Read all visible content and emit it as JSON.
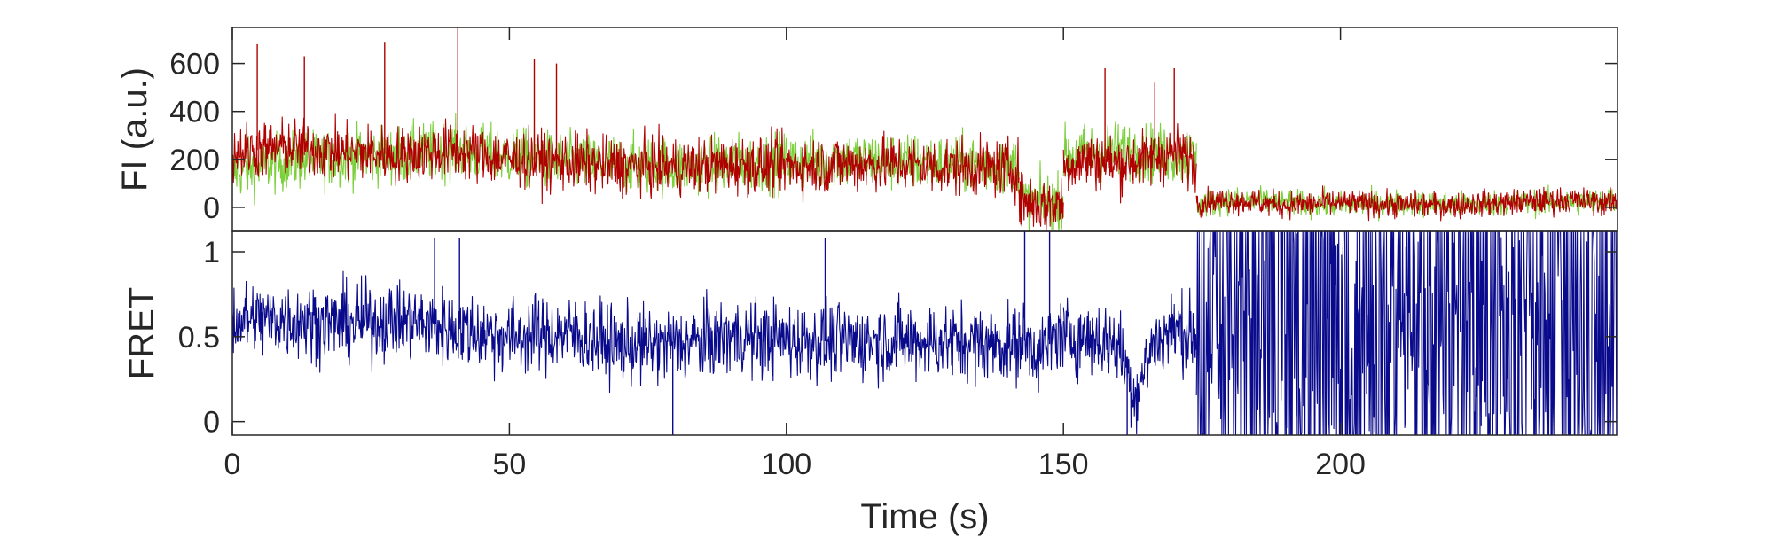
{
  "chart_data": [
    {
      "type": "line",
      "panel": "top",
      "ylabel": "FI (a.u.)",
      "xlim": [
        0,
        250
      ],
      "ylim": [
        -100,
        750
      ],
      "yticks": [
        0,
        200,
        400,
        600
      ],
      "ytick_labels": [
        "0",
        "200",
        "400",
        "600"
      ],
      "colors": {
        "donor": "#7ccf3a",
        "acceptor": "#b00000"
      },
      "series": [
        {
          "color_key": "donor",
          "segments": [
            {
              "x": [
                0,
                10,
                20,
                30,
                40,
                50,
                60,
                70,
                80,
                90,
                100,
                110,
                120,
                130,
                142
              ],
              "y": [
                150,
                190,
                210,
                220,
                240,
                210,
                190,
                180,
                170,
                180,
                190,
                200,
                190,
                180,
                175
              ]
            },
            {
              "x": [
                142,
                146,
                150
              ],
              "y": [
                20,
                20,
                20
              ]
            },
            {
              "x": [
                150,
                155,
                160,
                165,
                170,
                174
              ],
              "y": [
                210,
                230,
                240,
                230,
                220,
                210
              ]
            },
            {
              "x": [
                174,
                180,
                190,
                200,
                210,
                220,
                230,
                240,
                250
              ],
              "y": [
                10,
                30,
                20,
                10,
                20,
                10,
                20,
                20,
                30
              ]
            }
          ]
        },
        {
          "color_key": "acceptor",
          "segments": [
            {
              "x": [
                0,
                10,
                20,
                30,
                40,
                50,
                60,
                70,
                80,
                90,
                100,
                110,
                120,
                130,
                142
              ],
              "y": [
                230,
                250,
                230,
                220,
                240,
                200,
                190,
                170,
                170,
                180,
                175,
                180,
                180,
                170,
                160
              ]
            },
            {
              "x": [
                142,
                146,
                150
              ],
              "y": [
                30,
                10,
                20
              ]
            },
            {
              "x": [
                150,
                155,
                160,
                165,
                170,
                174
              ],
              "y": [
                170,
                200,
                180,
                200,
                230,
                190
              ]
            },
            {
              "x": [
                174,
                180,
                190,
                200,
                210,
                220,
                230,
                240,
                250
              ],
              "y": [
                20,
                30,
                10,
                20,
                10,
                10,
                20,
                30,
                20
              ]
            }
          ],
          "spikes": [
            {
              "x": 4.5,
              "y": 680
            },
            {
              "x": 13,
              "y": 630
            },
            {
              "x": 27.5,
              "y": 690
            },
            {
              "x": 40.7,
              "y": 750
            },
            {
              "x": 54.5,
              "y": 620
            },
            {
              "x": 58.5,
              "y": 600
            },
            {
              "x": 157.5,
              "y": 580
            },
            {
              "x": 166.5,
              "y": 520
            },
            {
              "x": 170,
              "y": 580
            }
          ]
        }
      ]
    },
    {
      "type": "line",
      "panel": "bottom",
      "xlabel": "Time (s)",
      "ylabel": "FRET",
      "xlim": [
        0,
        250
      ],
      "ylim": [
        -0.08,
        1.12
      ],
      "xticks": [
        0,
        50,
        100,
        150,
        200
      ],
      "xtick_labels": [
        "0",
        "50",
        "100",
        "150",
        "200"
      ],
      "yticks": [
        0,
        0.5,
        1
      ],
      "ytick_labels": [
        "0",
        "0.5",
        "1"
      ],
      "colors": {
        "fret": "#0a0a8c"
      },
      "series": [
        {
          "color_key": "fret",
          "segments": [
            {
              "x": [
                0,
                10,
                20,
                30,
                40,
                50,
                60,
                70,
                80,
                90,
                100,
                110,
                120,
                130,
                142
              ],
              "y": [
                0.6,
                0.6,
                0.58,
                0.6,
                0.55,
                0.5,
                0.52,
                0.45,
                0.45,
                0.5,
                0.48,
                0.47,
                0.48,
                0.47,
                0.45
              ]
            },
            {
              "x": [
                142,
                146,
                150
              ],
              "y": [
                0.5,
                0.4,
                0.55
              ]
            },
            {
              "x": [
                150,
                155,
                160,
                163,
                166,
                170,
                174
              ],
              "y": [
                0.5,
                0.5,
                0.45,
                0.15,
                0.45,
                0.55,
                0.5
              ]
            },
            {
              "x": [
                174,
                250
              ],
              "y": [
                0.5,
                0.5
              ]
            }
          ],
          "spikes": [
            {
              "x": 36.5,
              "y": 1.08
            },
            {
              "x": 41,
              "y": 1.08
            },
            {
              "x": 79.5,
              "y": -0.08
            },
            {
              "x": 107,
              "y": 1.08
            },
            {
              "x": 143,
              "y": 1.12
            },
            {
              "x": 147.5,
              "y": 1.12
            },
            {
              "x": 161.5,
              "y": -0.08
            }
          ]
        }
      ]
    }
  ]
}
